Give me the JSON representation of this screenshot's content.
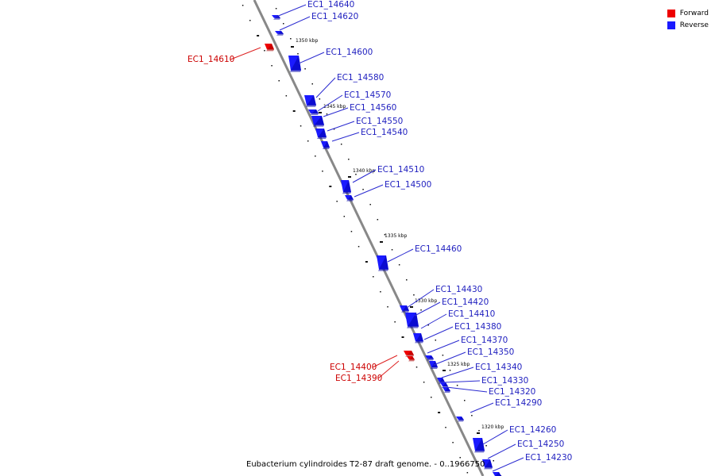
{
  "caption": "Eubacterium cylindroides T2-87 draft genome. - 0..1966750",
  "legend": [
    {
      "label": "Forward",
      "color": "#ee0000"
    },
    {
      "label": "Reverse",
      "color": "#1a1aff"
    }
  ],
  "colors": {
    "forward": "#ee0000",
    "reverse": "#1a1aff",
    "forward_label": "#cc0000",
    "reverse_label": "#1f1fbf",
    "axis": "#808080"
  },
  "kbp_labels": [
    "1350 kbp",
    "1345 kbp",
    "1340 kbp",
    "1335 kbp",
    "1330 kbp",
    "1325 kbp",
    "1320 kbp"
  ],
  "genes": [
    {
      "id": "EC1_14640",
      "strand": "reverse"
    },
    {
      "id": "EC1_14620",
      "strand": "reverse"
    },
    {
      "id": "EC1_14610",
      "strand": "forward"
    },
    {
      "id": "EC1_14600",
      "strand": "reverse"
    },
    {
      "id": "EC1_14580",
      "strand": "reverse"
    },
    {
      "id": "EC1_14570",
      "strand": "reverse"
    },
    {
      "id": "EC1_14560",
      "strand": "reverse"
    },
    {
      "id": "EC1_14550",
      "strand": "reverse"
    },
    {
      "id": "EC1_14540",
      "strand": "reverse"
    },
    {
      "id": "EC1_14510",
      "strand": "reverse"
    },
    {
      "id": "EC1_14500",
      "strand": "reverse"
    },
    {
      "id": "EC1_14460",
      "strand": "reverse"
    },
    {
      "id": "EC1_14430",
      "strand": "reverse"
    },
    {
      "id": "EC1_14420",
      "strand": "reverse"
    },
    {
      "id": "EC1_14410",
      "strand": "reverse"
    },
    {
      "id": "EC1_14380",
      "strand": "reverse"
    },
    {
      "id": "EC1_14370",
      "strand": "reverse"
    },
    {
      "id": "EC1_14350",
      "strand": "reverse"
    },
    {
      "id": "EC1_14340",
      "strand": "reverse"
    },
    {
      "id": "EC1_14330",
      "strand": "reverse"
    },
    {
      "id": "EC1_14320",
      "strand": "reverse"
    },
    {
      "id": "EC1_14290",
      "strand": "reverse"
    },
    {
      "id": "EC1_14400",
      "strand": "forward"
    },
    {
      "id": "EC1_14390",
      "strand": "forward"
    },
    {
      "id": "EC1_14260",
      "strand": "reverse"
    },
    {
      "id": "EC1_14250",
      "strand": "reverse"
    },
    {
      "id": "EC1_14230",
      "strand": "reverse"
    }
  ]
}
